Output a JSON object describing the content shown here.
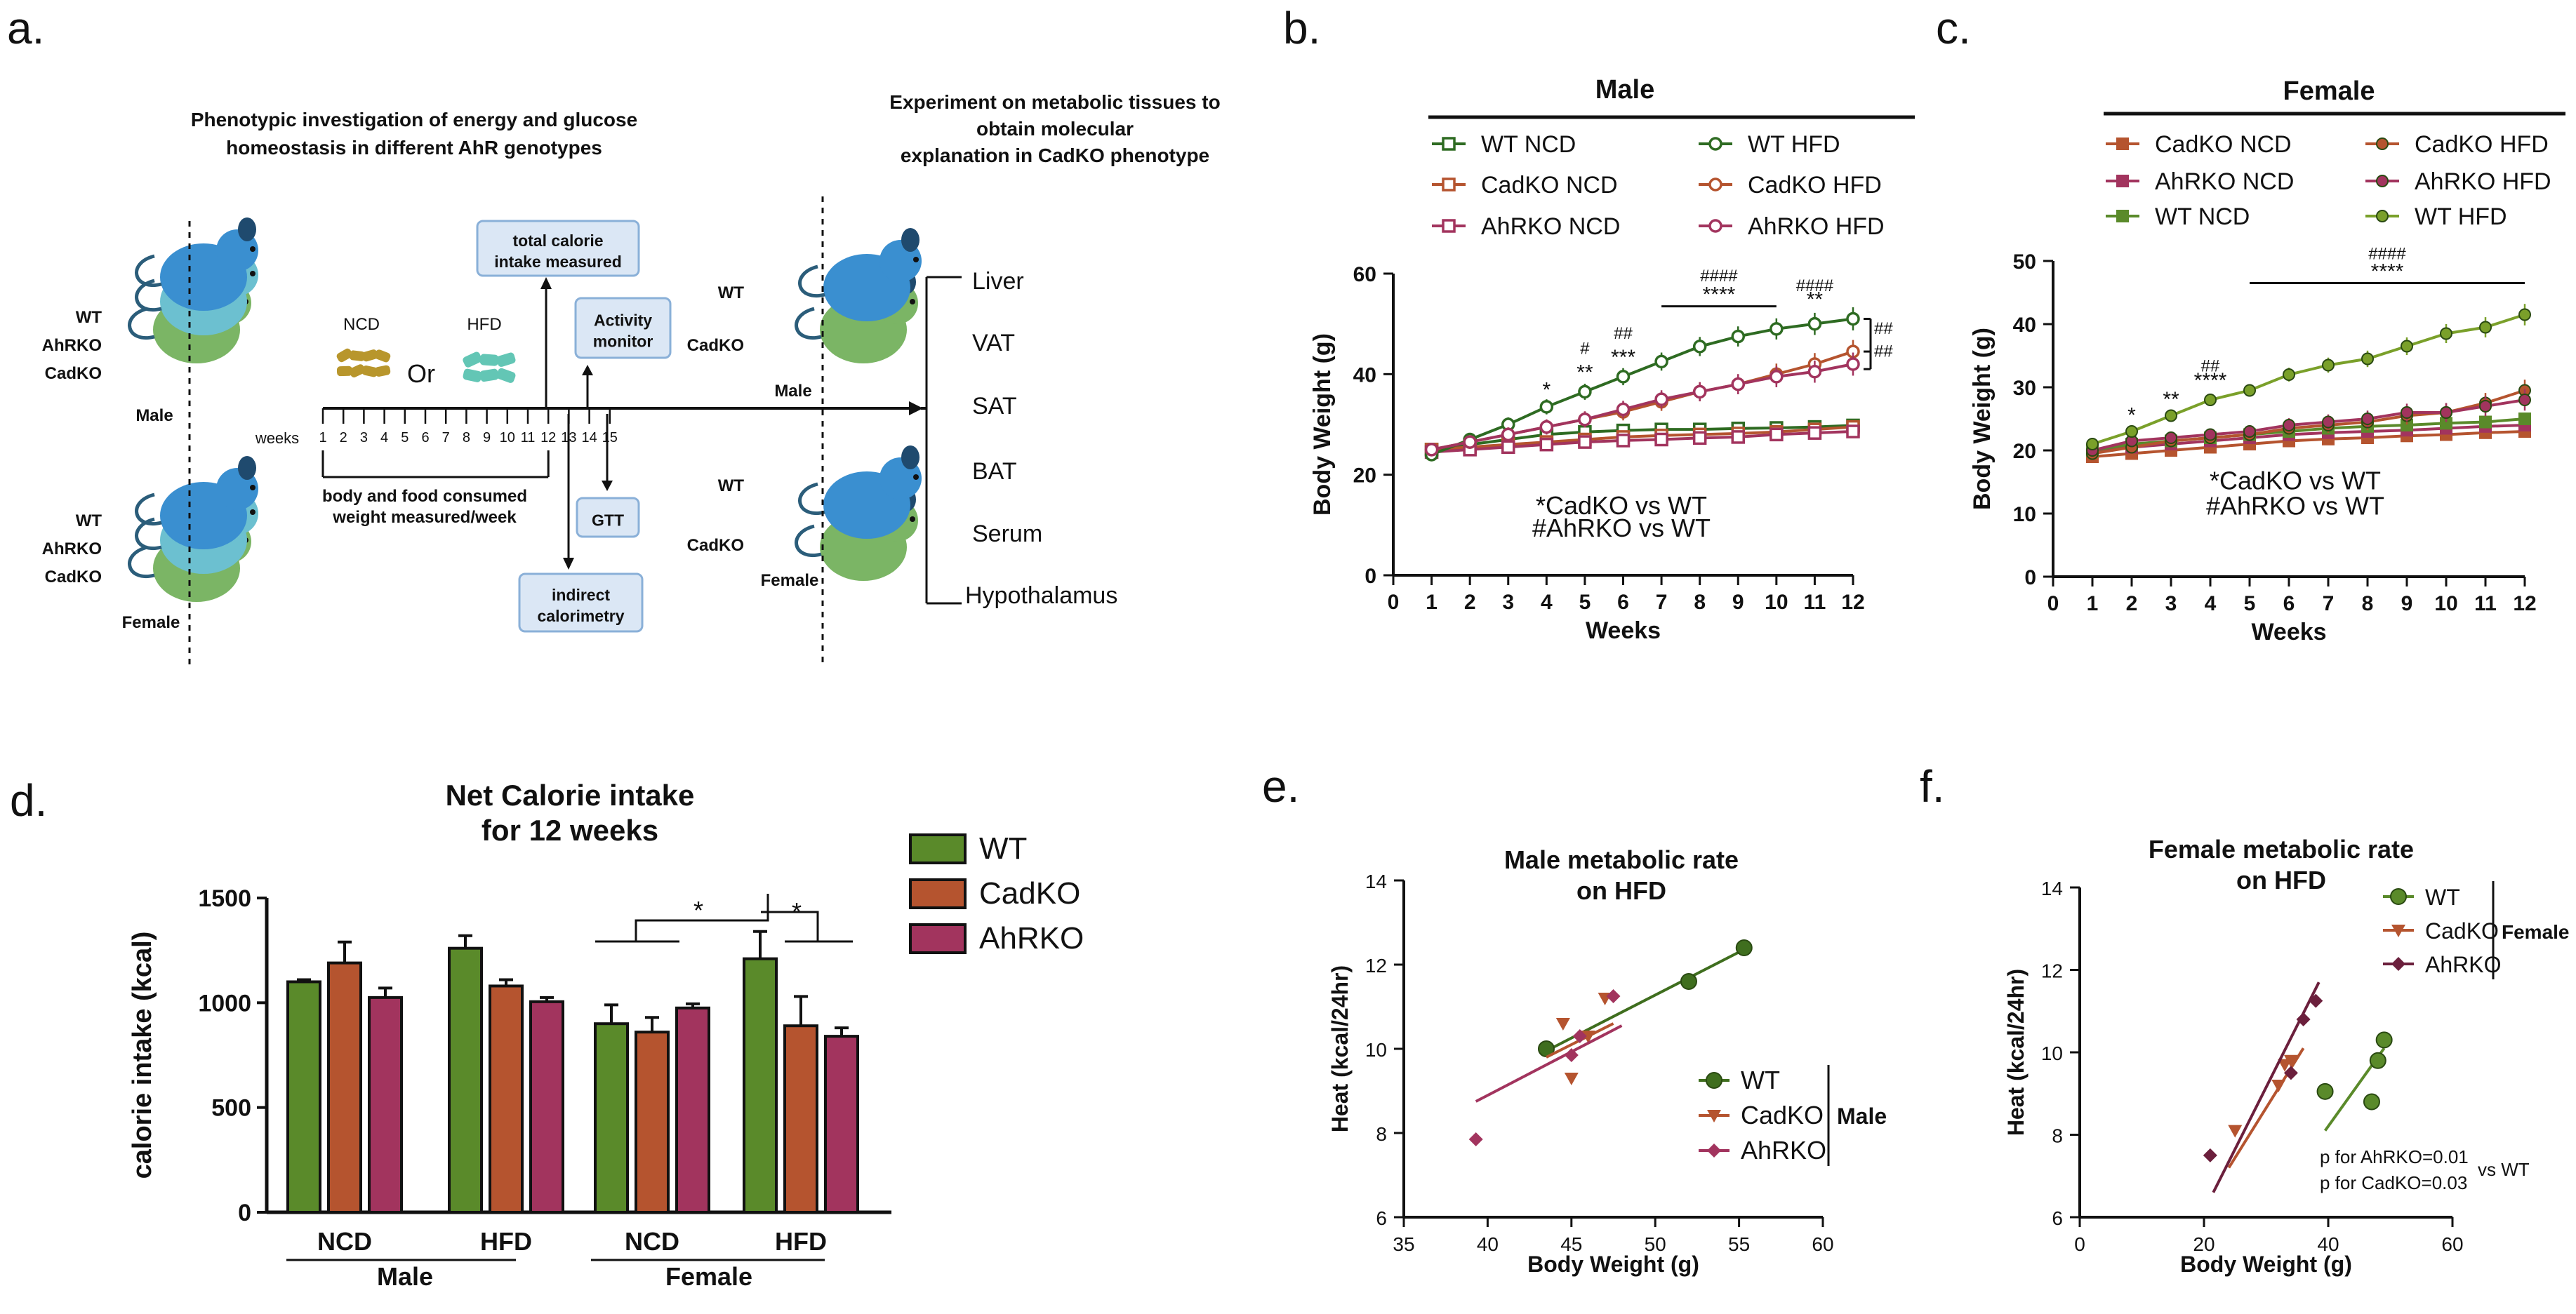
{
  "panel_labels": {
    "a": "a.",
    "b": "b.",
    "c": "c.",
    "d": "d.",
    "e": "e.",
    "f": "f."
  },
  "colors": {
    "wt_green": "#3f7d2a",
    "wt_ncd_green": "#2e6b22",
    "cadko_orange": "#b5542f",
    "ahrko_magenta": "#a2345e",
    "ahrko_dark": "#6b1f3c",
    "cadko_dark": "#8a3a1c",
    "box_fill": "#dbe7f5",
    "box_stroke": "#8ab0d8",
    "mouse_blue": "#3a8fd0",
    "mouse_teal": "#6cc0d0",
    "mouse_green": "#7bb565"
  },
  "schematic": {
    "heading_left": [
      "Phenotypic investigation of energy and glucose",
      "homeostasis in different AhR genotypes"
    ],
    "heading_right": [
      "Experiment on metabolic tissues to",
      "obtain molecular",
      "explanation in CadKO phenotype"
    ],
    "genotypes_top": [
      "WT",
      "AhRKO",
      "CadKO"
    ],
    "sex_top": "Male",
    "genotypes_bottom": [
      "WT",
      "AhRKO",
      "CadKO"
    ],
    "sex_bottom": "Female",
    "diet_ncd": "NCD",
    "diet_or": "Or",
    "diet_hfd": "HFD",
    "weeks_label": "weeks",
    "week_ticks": [
      "1",
      "2",
      "3",
      "4",
      "5",
      "6",
      "7",
      "8",
      "9",
      "10",
      "11",
      "12",
      "13",
      "14",
      "15"
    ],
    "weight_note": [
      "body and food consumed",
      "weight measured/week"
    ],
    "box_calorie": [
      "total calorie",
      "intake measured"
    ],
    "box_activity": [
      "Activity",
      "monitor"
    ],
    "box_gtt": "GTT",
    "box_indirect": [
      "indirect",
      "calorimetry"
    ],
    "right_genotypes_top": [
      "WT",
      "CadKO"
    ],
    "right_sex_top": "Male",
    "right_genotypes_bottom": [
      "WT",
      "CadKO"
    ],
    "right_sex_bottom": "Female",
    "tissues": [
      "Liver",
      "VAT",
      "SAT",
      "BAT",
      "Serum",
      "Hypothalamus"
    ]
  },
  "chart_data": [
    {
      "panel": "b",
      "type": "line",
      "title": "Male",
      "xlabel": "Weeks",
      "ylabel": "Body Weight (g)",
      "xlim": [
        0,
        12
      ],
      "ylim": [
        0,
        60
      ],
      "xticks": [
        "0",
        "1",
        "2",
        "3",
        "4",
        "5",
        "6",
        "7",
        "8",
        "9",
        "10",
        "11",
        "12"
      ],
      "yticks": [
        "0",
        "20",
        "40",
        "60"
      ],
      "x": [
        1,
        2,
        3,
        4,
        5,
        6,
        7,
        8,
        9,
        10,
        11,
        12
      ],
      "series": [
        {
          "name": "WT NCD",
          "marker": "square-open",
          "color": "#2e6b22",
          "values": [
            25,
            26,
            27,
            28,
            28.5,
            28.8,
            29,
            29,
            29.2,
            29.3,
            29.5,
            29.8
          ]
        },
        {
          "name": "CadKO NCD",
          "marker": "square-open",
          "color": "#b5542f",
          "values": [
            25,
            25.5,
            26,
            26.5,
            27,
            27.5,
            27.8,
            28,
            28.2,
            28.5,
            29,
            29.5
          ]
        },
        {
          "name": "AhRKO NCD",
          "marker": "square-open",
          "color": "#a2345e",
          "values": [
            24.5,
            25,
            25.5,
            26,
            26.5,
            26.8,
            27,
            27.3,
            27.5,
            28,
            28.3,
            28.6
          ]
        },
        {
          "name": "WT HFD",
          "marker": "circle-open",
          "color": "#2e6b22",
          "values": [
            24,
            27,
            30,
            33.5,
            36.5,
            39.5,
            42.5,
            45.5,
            47.5,
            49,
            50,
            51
          ]
        },
        {
          "name": "CadKO HFD",
          "marker": "circle-open",
          "color": "#b5542f",
          "values": [
            25,
            26.5,
            28,
            29.5,
            31,
            32.5,
            34.5,
            36.5,
            38,
            40,
            42,
            44.5
          ]
        },
        {
          "name": "AhRKO HFD",
          "marker": "circle-open",
          "color": "#a2345e",
          "values": [
            25,
            26.5,
            28,
            29.5,
            31,
            33,
            35,
            36.5,
            38,
            39.5,
            40.5,
            42
          ]
        }
      ],
      "annotations": {
        "stars": [
          {
            "x": 4,
            "text": "*"
          },
          {
            "x": 5,
            "text": "**"
          },
          {
            "x": 6,
            "text": "***"
          },
          {
            "x": 11,
            "text": "**"
          }
        ],
        "hashes": [
          {
            "x": 5,
            "text": "#"
          },
          {
            "x": 6,
            "text": "##"
          },
          {
            "x": 11,
            "text": "####"
          }
        ],
        "bar_stars": "****",
        "bar_hashes": "####",
        "right_hashes": [
          "##",
          "##"
        ],
        "notes": [
          "*CadKO vs WT",
          "#AhRKO vs WT"
        ]
      }
    },
    {
      "panel": "c",
      "type": "line",
      "title": "Female",
      "xlabel": "Weeks",
      "ylabel": "Body Weight (g)",
      "xlim": [
        0,
        12
      ],
      "ylim": [
        0,
        50
      ],
      "xticks": [
        "0",
        "1",
        "2",
        "3",
        "4",
        "5",
        "6",
        "7",
        "8",
        "9",
        "10",
        "11",
        "12"
      ],
      "yticks": [
        "0",
        "10",
        "20",
        "30",
        "40",
        "50"
      ],
      "x": [
        1,
        2,
        3,
        4,
        5,
        6,
        7,
        8,
        9,
        10,
        11,
        12
      ],
      "series": [
        {
          "name": "CadKO NCD",
          "marker": "square",
          "color": "#b5542f",
          "values": [
            19,
            19.5,
            20,
            20.5,
            21,
            21.5,
            21.8,
            22,
            22.3,
            22.5,
            22.8,
            23
          ]
        },
        {
          "name": "AhRKO NCD",
          "marker": "square",
          "color": "#a2345e",
          "values": [
            20,
            20.5,
            21,
            21.5,
            22,
            22.5,
            22.8,
            23,
            23.2,
            23.5,
            23.8,
            24
          ]
        },
        {
          "name": "WT NCD",
          "marker": "square",
          "color": "#5a8a2a",
          "values": [
            20,
            21,
            21.5,
            22,
            22.5,
            23,
            23.5,
            23.8,
            24,
            24.3,
            24.5,
            25
          ]
        },
        {
          "name": "CadKO HFD",
          "marker": "circle",
          "color": "#b5542f",
          "values": [
            19.5,
            20.5,
            21.5,
            22,
            22.5,
            23.5,
            24,
            24.5,
            25.5,
            26,
            27.5,
            29.5
          ]
        },
        {
          "name": "AhRKO HFD",
          "marker": "circle",
          "color": "#a2345e",
          "values": [
            20,
            21.5,
            22,
            22.5,
            23,
            24,
            24.5,
            25,
            26,
            26,
            27,
            28
          ]
        },
        {
          "name": "WT HFD",
          "marker": "circle",
          "color": "#7aa02a",
          "values": [
            21,
            23,
            25.5,
            28,
            29.5,
            32,
            33.5,
            34.5,
            36.5,
            38.5,
            39.5,
            41.5
          ]
        }
      ],
      "annotations": {
        "stars": [
          {
            "x": 2,
            "text": "*"
          },
          {
            "x": 3,
            "text": "**"
          },
          {
            "x": 4,
            "text": "****"
          }
        ],
        "hashes": [
          {
            "x": 4,
            "text": "##"
          }
        ],
        "bar_stars": "****",
        "bar_hashes": "####",
        "notes": [
          "*CadKO vs WT",
          "#AhRKO vs WT"
        ]
      }
    },
    {
      "panel": "d",
      "type": "bar",
      "title": [
        "Net Calorie intake",
        "for 12 weeks"
      ],
      "ylabel": "calorie intake (kcal)",
      "ylim": [
        0,
        1500
      ],
      "yticks": [
        "0",
        "500",
        "1000",
        "1500"
      ],
      "categories": [
        "NCD",
        "HFD",
        "NCD",
        "HFD"
      ],
      "groups": [
        "Male",
        "Female"
      ],
      "series": [
        {
          "name": "WT",
          "color": "#5a8a2a",
          "values": [
            1100,
            1260,
            900,
            1210
          ],
          "errors": [
            10,
            60,
            90,
            130
          ]
        },
        {
          "name": "CadKO",
          "color": "#b5542f",
          "values": [
            1190,
            1080,
            860,
            890
          ],
          "errors": [
            100,
            30,
            70,
            140
          ]
        },
        {
          "name": "AhRKO",
          "color": "#a2345e",
          "values": [
            1025,
            1005,
            975,
            840
          ],
          "errors": [
            45,
            20,
            20,
            40
          ]
        }
      ],
      "significance": [
        "*",
        "*"
      ]
    },
    {
      "panel": "e",
      "type": "scatter",
      "title": [
        "Male metabolic rate",
        "on HFD"
      ],
      "xlabel": "Body Weight (g)",
      "ylabel": "Heat (kcal/24hr)",
      "xlim": [
        35,
        60
      ],
      "ylim": [
        6,
        14
      ],
      "xticks": [
        "35",
        "40",
        "45",
        "50",
        "55",
        "60"
      ],
      "yticks": [
        "6",
        "8",
        "10",
        "12",
        "14"
      ],
      "legend_group": "Male",
      "series": [
        {
          "name": "WT",
          "marker": "circle",
          "color": "#3f6e1e",
          "points": [
            [
              43.5,
              10
            ],
            [
              52,
              11.6
            ],
            [
              55.3,
              12.4
            ]
          ],
          "fit": [
            [
              43.5,
              9.95
            ],
            [
              55.5,
              12.4
            ]
          ]
        },
        {
          "name": "CadKO",
          "marker": "triangle-down",
          "color": "#b5542f",
          "points": [
            [
              44.5,
              10.6
            ],
            [
              45,
              9.3
            ],
            [
              46,
              10.3
            ],
            [
              47,
              11.2
            ]
          ],
          "fit": [
            [
              43.5,
              9.8
            ],
            [
              47.5,
              10.6
            ]
          ]
        },
        {
          "name": "AhRKO",
          "marker": "diamond",
          "color": "#a2345e",
          "points": [
            [
              39.3,
              7.85
            ],
            [
              45,
              9.85
            ],
            [
              45.5,
              10.3
            ],
            [
              47.5,
              11.25
            ]
          ],
          "fit": [
            [
              39.3,
              8.75
            ],
            [
              48,
              10.55
            ]
          ]
        }
      ]
    },
    {
      "panel": "f",
      "type": "scatter",
      "title": [
        "Female metabolic rate",
        "on HFD"
      ],
      "xlabel": "Body Weight (g)",
      "ylabel": "Heat (kcal/24hr)",
      "xlim": [
        0,
        60
      ],
      "ylim": [
        6,
        14
      ],
      "xticks": [
        "0",
        "20",
        "40",
        "60"
      ],
      "yticks": [
        "6",
        "8",
        "10",
        "12",
        "14"
      ],
      "legend_group": "Female",
      "series": [
        {
          "name": "WT",
          "marker": "circle",
          "color": "#5a8a2a",
          "points": [
            [
              39.5,
              9.05
            ],
            [
              47,
              8.8
            ],
            [
              48,
              9.8
            ],
            [
              49,
              10.3
            ]
          ],
          "fit": [
            [
              39.5,
              8.1
            ],
            [
              49,
              10.1
            ]
          ]
        },
        {
          "name": "CadKO",
          "marker": "triangle-down",
          "color": "#b5542f",
          "points": [
            [
              25,
              8.1
            ],
            [
              32,
              9.2
            ],
            [
              33,
              9.7
            ],
            [
              34,
              9.8
            ]
          ],
          "fit": [
            [
              24,
              7.2
            ],
            [
              36,
              10.1
            ]
          ]
        },
        {
          "name": "AhRKO",
          "marker": "diamond",
          "color": "#6b1f3c",
          "points": [
            [
              21,
              7.5
            ],
            [
              34,
              9.5
            ],
            [
              36,
              10.8
            ],
            [
              38,
              11.25
            ]
          ],
          "fit": [
            [
              21.5,
              6.6
            ],
            [
              38.5,
              11.7
            ]
          ]
        }
      ],
      "notes": [
        "p for AhRKO=0.01",
        "p for CadKO=0.03"
      ],
      "notes_suffix": "vs WT"
    }
  ]
}
